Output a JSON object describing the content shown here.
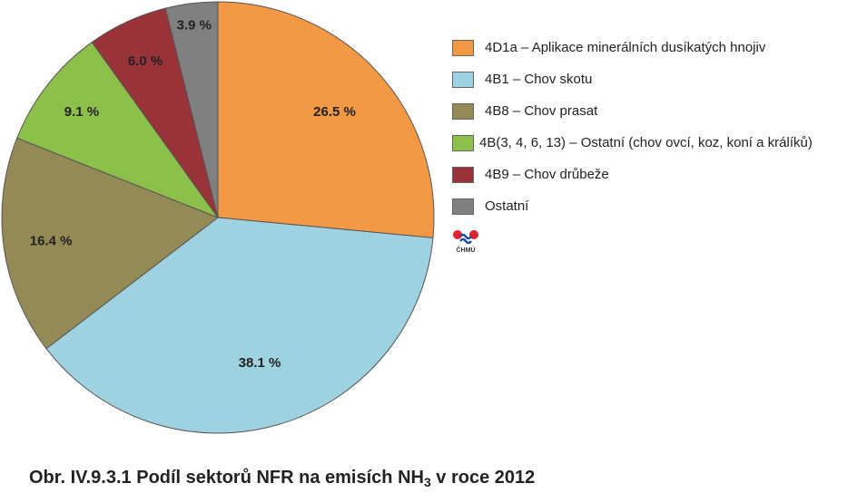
{
  "chart_data": {
    "type": "pie",
    "slices": [
      {
        "category": "4D1a – Aplikace minerálních dusíkatých hnojiv",
        "value": 26.5,
        "label": "26.5 %",
        "color": "#F39844"
      },
      {
        "category": "4B1 – Chov skotu",
        "value": 38.1,
        "label": "38.1 %",
        "color": "#9ED2E1"
      },
      {
        "category": "4B8 – Chov prasat",
        "value": 16.4,
        "label": "16.4 %",
        "color": "#948A55"
      },
      {
        "category": "4B(3, 4, 6, 13) – Ostatní (chov ovcí, koz, koní a králíků)",
        "value": 9.1,
        "label": "9.1 %",
        "color": "#8DBF4B"
      },
      {
        "category": "4B9 – Chov drůbeže",
        "value": 6.0,
        "label": "6.0 %",
        "color": "#993339"
      },
      {
        "category": "Ostatní",
        "value": 3.9,
        "label": "3.9 %",
        "color": "#808080"
      }
    ],
    "legend_position": "right"
  },
  "logo": {
    "text": "ČHMÚ"
  },
  "caption": {
    "prefix": "Obr. IV.9.3.1  Podíl sektorů NFR na emisích NH",
    "subscript": "3",
    "suffix": " v roce 2012"
  }
}
